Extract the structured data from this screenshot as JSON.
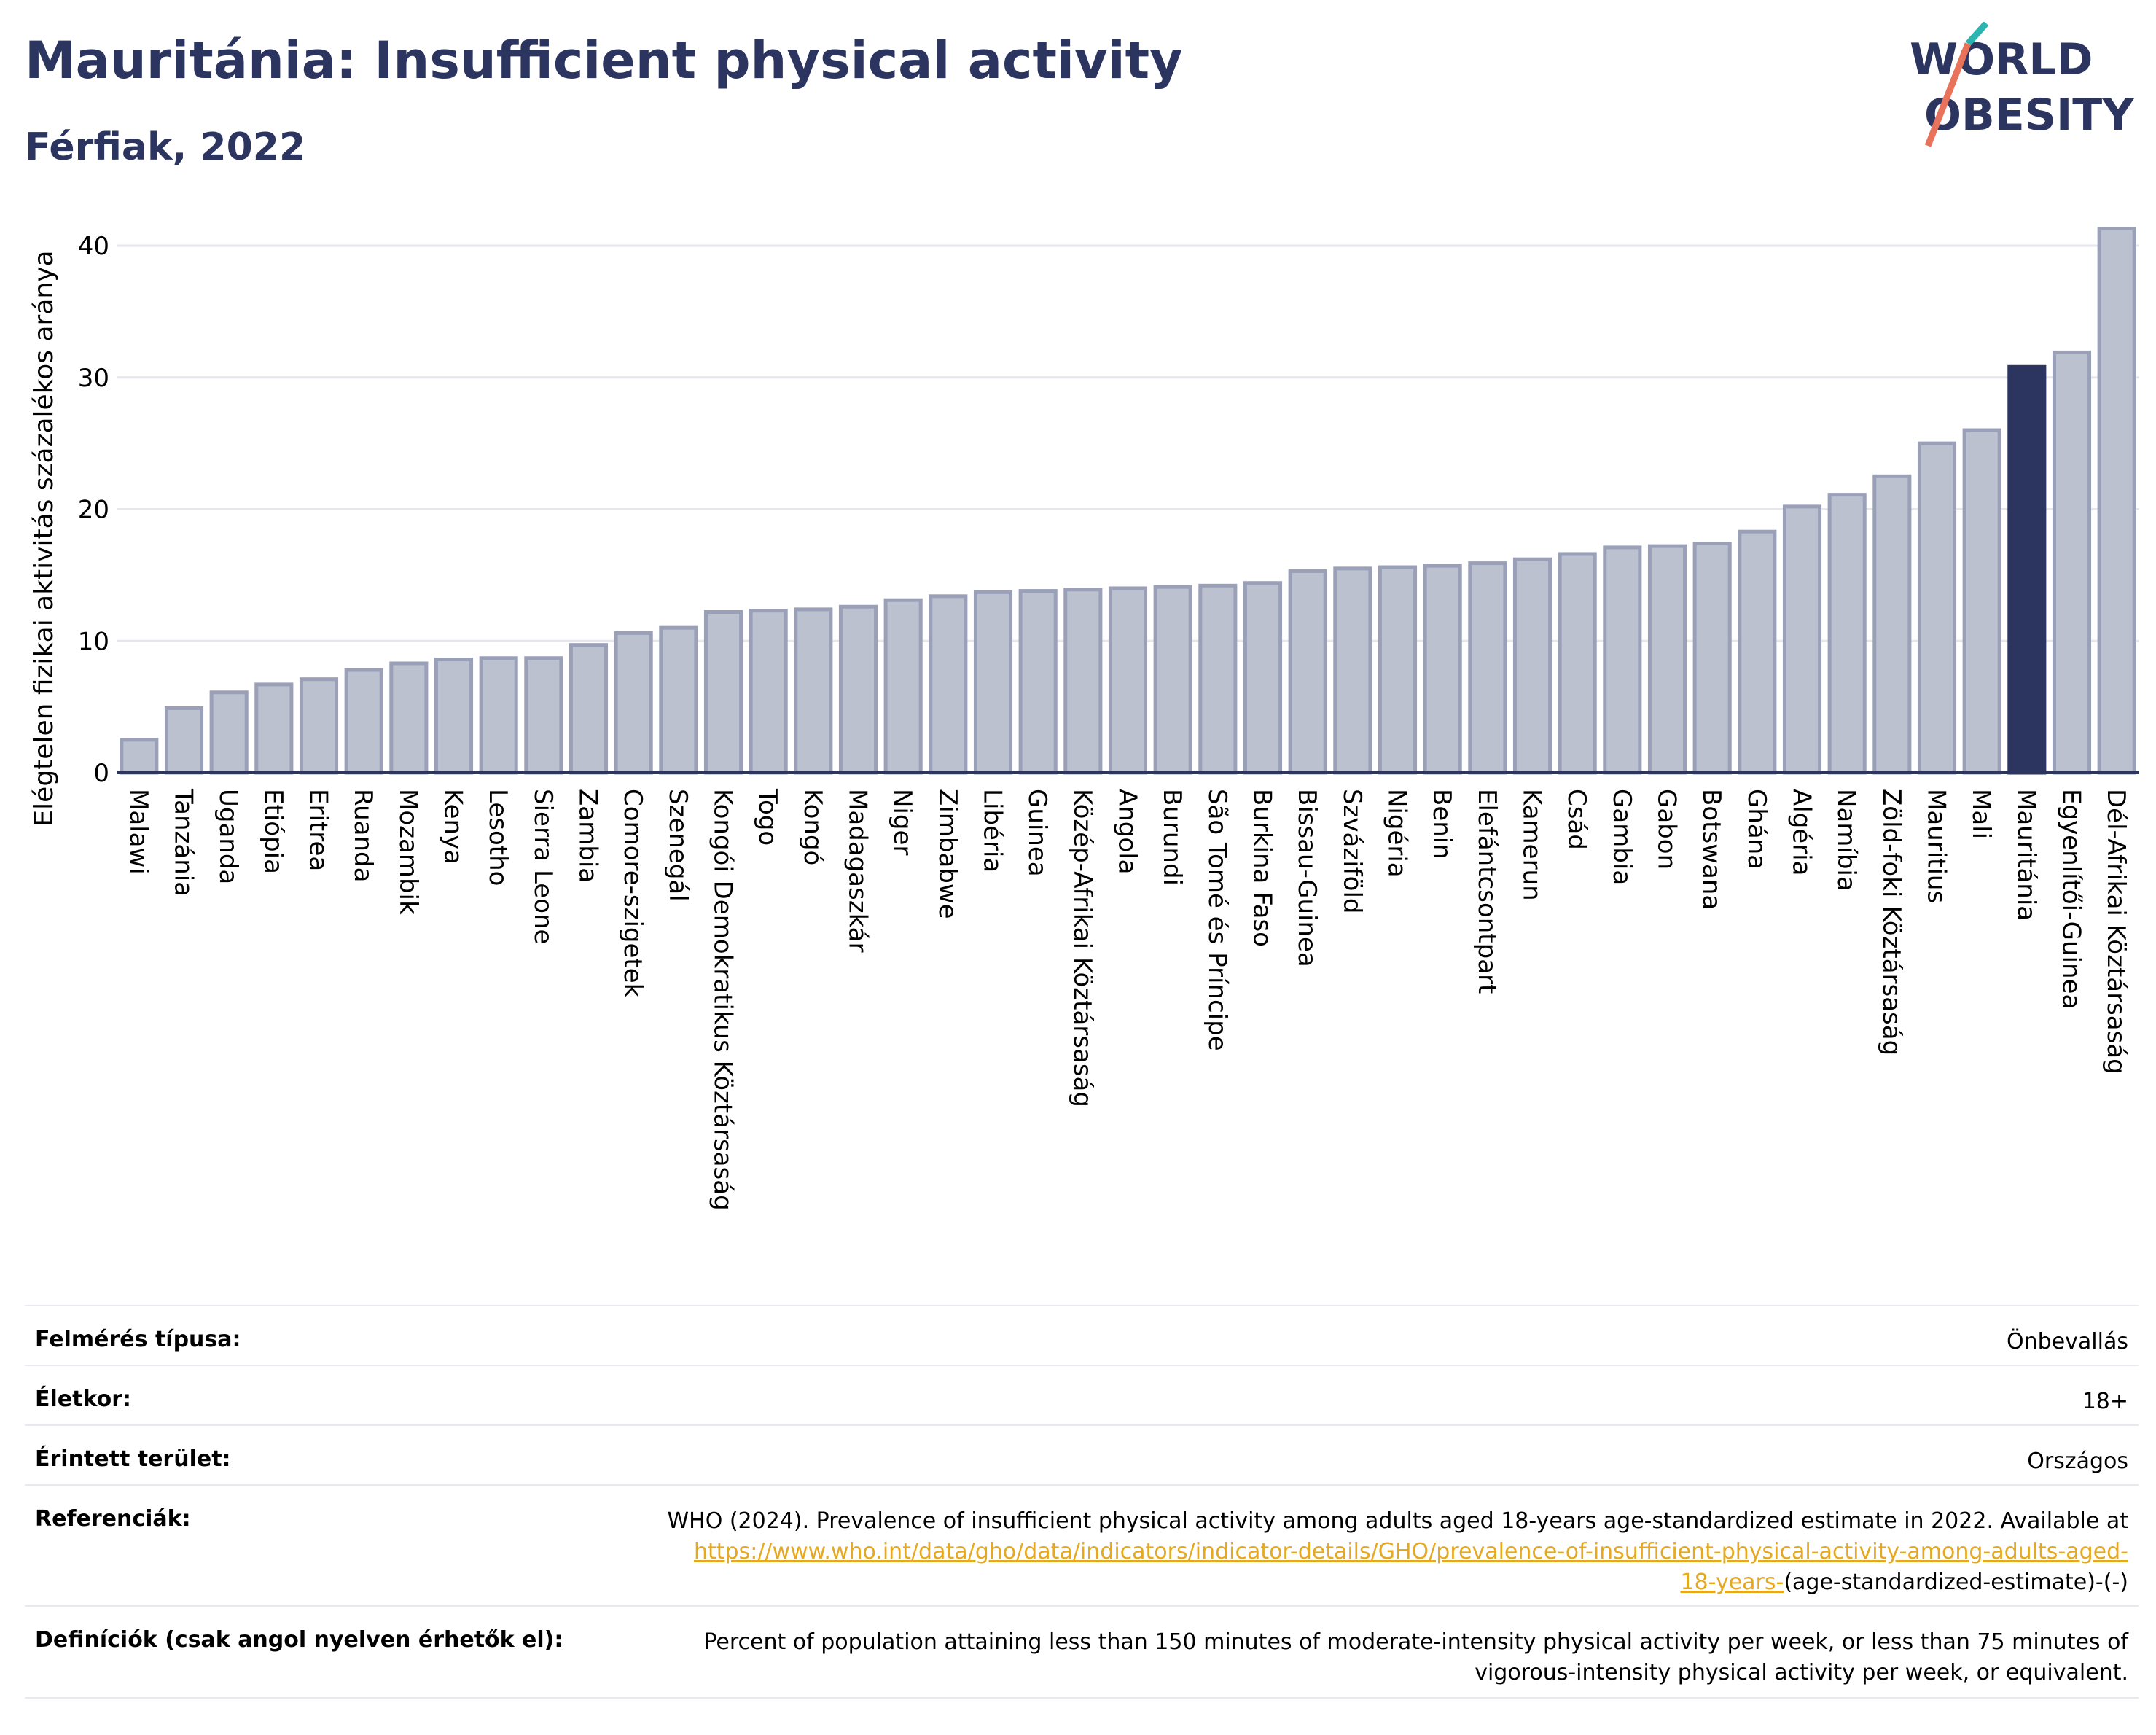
{
  "header": {
    "title": "Mauritánia: Insufficient physical activity",
    "subtitle": "Férfiak, 2022"
  },
  "logo": {
    "line1": "WORLD",
    "line2": "OBESITY",
    "colors": {
      "text": "#2b3560",
      "slash_teal": "#2bb5b0",
      "slash_coral": "#e8735a"
    }
  },
  "colors": {
    "bar_default": "#bcc1d0",
    "bar_border": "#9aa0b8",
    "bar_highlight": "#2b3560",
    "axis": "#2b3560",
    "grid": "#e6e6ec"
  },
  "chart_data": {
    "type": "bar",
    "title": "Mauritánia: Insufficient physical activity",
    "subtitle": "Férfiak, 2022",
    "xlabel": "",
    "ylabel": "Elégtelen fizikai aktivitás százalékos aránya",
    "ylim": [
      0,
      43
    ],
    "yticks": [
      0,
      10,
      20,
      30,
      40
    ],
    "grid": true,
    "highlight": "Mauritánia",
    "categories": [
      "Malawi",
      "Tanzánia",
      "Uganda",
      "Etiópia",
      "Eritrea",
      "Ruanda",
      "Mozambik",
      "Kenya",
      "Lesotho",
      "Sierra Leone",
      "Zambia",
      "Comore-szigetek",
      "Szenegál",
      "Kongói Demokratikus Köztársaság",
      "Togo",
      "Kongó",
      "Madagaszkár",
      "Niger",
      "Zimbabwe",
      "Libéria",
      "Guinea",
      "Közép-Afrikai Köztársaság",
      "Angola",
      "Burundi",
      "São Tomé és Príncipe",
      "Burkina Faso",
      "Bissau-Guinea",
      "Szváziföld",
      "Nigéria",
      "Benin",
      "Elefántcsontpart",
      "Kamerun",
      "Csád",
      "Gambia",
      "Gabon",
      "Botswana",
      "Ghána",
      "Algéria",
      "Namíbia",
      "Zöld-foki Köztársaság",
      "Mauritius",
      "Mali",
      "Mauritánia",
      "Egyenlítői-Guinea",
      "Dél-Afrikai Köztársaság"
    ],
    "values": [
      2.5,
      4.9,
      6.1,
      6.7,
      7.1,
      7.8,
      8.3,
      8.6,
      8.7,
      8.7,
      9.7,
      10.6,
      11.0,
      12.2,
      12.3,
      12.4,
      12.6,
      13.1,
      13.4,
      13.7,
      13.8,
      13.9,
      14.0,
      14.1,
      14.2,
      14.4,
      15.3,
      15.5,
      15.6,
      15.7,
      15.9,
      16.2,
      16.6,
      17.1,
      17.2,
      17.4,
      18.3,
      20.2,
      21.1,
      22.5,
      25.0,
      26.0,
      30.8,
      31.9,
      41.3
    ]
  },
  "info": {
    "survey_label": "Felmérés típusa:",
    "survey_value": "Önbevallás",
    "age_label": "Életkor:",
    "age_value": "18+",
    "area_label": "Érintett terület:",
    "area_value": "Országos",
    "ref_label": "Referenciák:",
    "ref_text": "WHO (2024). Prevalence of insufficient physical activity among adults aged 18-years age-standardized estimate in 2022. Available at",
    "ref_link_1": "https://www.who.int/data/gho/data/indicators/indicator-details/GHO/prevalence-of-insufficient-physical-activity-among-adults-aged-",
    "ref_link_2": "18-years-",
    "ref_tail": "(age-standardized-estimate)-(-)",
    "def_label": "Definíciók (csak angol nyelven érhetők el):",
    "def_text_1": "Percent of population attaining less than 150 minutes of moderate-intensity physical activity per week, or less than 75 minutes of",
    "def_text_2": "vigorous-intensity physical activity per week, or equivalent."
  }
}
